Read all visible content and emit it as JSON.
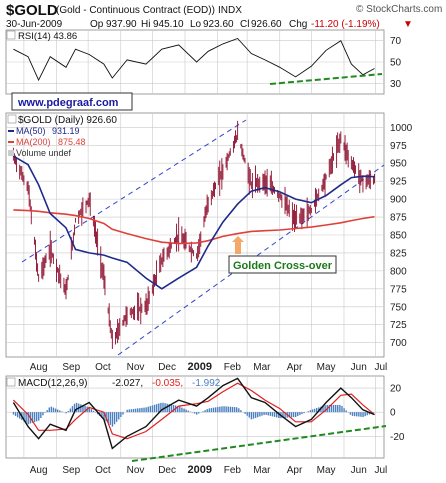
{
  "header": {
    "symbol": "$GOLD",
    "name": "(Gold - Continuous Contract (EOD))",
    "exchange": "INDX",
    "brand": "© StockCharts.com",
    "date": "30-Jun-2009",
    "op_label": "Op",
    "op": "937.90",
    "hi_label": "Hi",
    "hi": "945.10",
    "lo_label": "Lo",
    "lo": "923.60",
    "cl_label": "Cl",
    "cl": "926.60",
    "chg_label": "Chg",
    "chg": "-11.20 (-1.19%)",
    "chg_arrow": "▼"
  },
  "rsi_panel": {
    "legend": "RSI(14) 43.86"
  },
  "price_panel": {
    "url_label": "www.pdegraaf.com",
    "legend_main": "$GOLD (Daily) 926.60",
    "legend_ma50_name": "MA(50)",
    "legend_ma50_value": "931.19",
    "legend_ma200_name": "MA(200)",
    "legend_ma200_value": "875.48",
    "legend_volume": "Volume undef",
    "annotation": "Golden Cross-over"
  },
  "macd_panel": {
    "legend_name": "MACD(12,26,9)",
    "legend_v1": "-2.027,",
    "legend_v2": "-0.035,",
    "legend_v3": "-1.992"
  },
  "x_axis_labels": [
    "Aug",
    "Sep",
    "Oct",
    "Nov",
    "Dec",
    "2009",
    "Feb",
    "Mar",
    "Apr",
    "May",
    "Jun",
    "Jul"
  ],
  "colors": {
    "price_bars": "#8b0a2a",
    "ma50": "#1f2a8a",
    "ma200": "#e0403a",
    "channel": "#3344cc",
    "rsi_trend": "#1f8a1f",
    "macd_line": "#111111",
    "macd_signal": "#e02020",
    "macd_hist": "#4a7fc0",
    "macd_trend": "#1f8a1f",
    "annotation_text": "#1a7a1a",
    "annotation_arrow": "#f3a96a",
    "url_text": "#1a1aa0",
    "chg_text": "#cc0000"
  },
  "chart_data": [
    {
      "type": "line",
      "title": "RSI(14)",
      "y_ticks": [
        70,
        50,
        30
      ],
      "y_range": [
        20,
        80
      ],
      "x": [
        "2008-07-22",
        "2008-08-05",
        "2008-08-15",
        "2008-08-26",
        "2008-09-10",
        "2008-09-19",
        "2008-10-02",
        "2008-10-16",
        "2008-10-24",
        "2008-11-07",
        "2008-11-25",
        "2008-12-10",
        "2008-12-26",
        "2009-01-12",
        "2009-01-23",
        "2009-02-06",
        "2009-02-20",
        "2009-03-05",
        "2009-03-18",
        "2009-04-01",
        "2009-04-16",
        "2009-05-01",
        "2009-05-15",
        "2009-05-29",
        "2009-06-08",
        "2009-06-19",
        "2009-06-30"
      ],
      "series": [
        {
          "values": [
            62,
            55,
            33,
            55,
            45,
            62,
            57,
            48,
            35,
            52,
            48,
            62,
            66,
            50,
            60,
            67,
            72,
            58,
            52,
            45,
            36,
            46,
            61,
            70,
            48,
            38,
            43.86
          ]
        }
      ]
    },
    {
      "type": "line",
      "title": "$GOLD (Daily) 926.60",
      "y_ticks": [
        1000,
        975,
        950,
        925,
        900,
        875,
        850,
        825,
        800,
        775,
        750,
        725,
        700
      ],
      "y_range": [
        680,
        1020
      ],
      "x": [
        "2008-07-22",
        "2008-08-05",
        "2008-08-15",
        "2008-08-26",
        "2008-09-10",
        "2008-09-19",
        "2008-10-02",
        "2008-10-16",
        "2008-10-24",
        "2008-11-07",
        "2008-11-25",
        "2008-12-10",
        "2008-12-26",
        "2009-01-12",
        "2009-01-23",
        "2009-02-06",
        "2009-02-20",
        "2009-03-05",
        "2009-03-18",
        "2009-04-01",
        "2009-04-16",
        "2009-05-01",
        "2009-05-15",
        "2009-05-29",
        "2009-06-08",
        "2009-06-19",
        "2009-06-30"
      ],
      "series": [
        {
          "name": "$GOLD",
          "values": [
            960,
            915,
            790,
            830,
            770,
            870,
            900,
            790,
            700,
            740,
            750,
            815,
            850,
            820,
            895,
            940,
            990,
            920,
            925,
            905,
            870,
            885,
            930,
            985,
            950,
            925,
            926.6
          ]
        },
        {
          "name": "MA(50)",
          "values": [
            960,
            948,
            920,
            880,
            860,
            830,
            825,
            822,
            818,
            812,
            790,
            775,
            790,
            805,
            835,
            868,
            893,
            911,
            916,
            910,
            900,
            895,
            905,
            920,
            930,
            932,
            931.19
          ]
        },
        {
          "name": "MA(200)",
          "values": [
            885,
            884,
            883,
            881,
            879,
            877,
            873,
            866,
            858,
            852,
            845,
            840,
            838,
            839,
            842,
            848,
            852,
            855,
            856,
            857,
            859,
            861,
            864,
            867,
            870,
            873,
            875.48
          ]
        }
      ]
    },
    {
      "type": "line",
      "title": "MACD(12,26,9)",
      "y_ticks": [
        20,
        0,
        -20
      ],
      "y_range": [
        -38,
        30
      ],
      "x": [
        "2008-07-22",
        "2008-08-05",
        "2008-08-15",
        "2008-08-26",
        "2008-09-10",
        "2008-09-19",
        "2008-10-02",
        "2008-10-16",
        "2008-10-24",
        "2008-11-07",
        "2008-11-25",
        "2008-12-10",
        "2008-12-26",
        "2009-01-12",
        "2009-01-23",
        "2009-02-06",
        "2009-02-20",
        "2009-03-05",
        "2009-03-18",
        "2009-04-01",
        "2009-04-16",
        "2009-05-01",
        "2009-05-15",
        "2009-05-29",
        "2009-06-08",
        "2009-06-19",
        "2009-06-30"
      ],
      "series": [
        {
          "name": "MACD",
          "values": [
            8,
            -12,
            -22,
            -10,
            -15,
            2,
            8,
            -6,
            -30,
            -20,
            -12,
            2,
            10,
            5,
            12,
            22,
            28,
            12,
            8,
            -2,
            -12,
            -6,
            8,
            20,
            12,
            2,
            -2.027
          ]
        },
        {
          "name": "Signal",
          "values": [
            10,
            -2,
            -15,
            -15,
            -14,
            -6,
            4,
            0,
            -18,
            -22,
            -16,
            -6,
            5,
            7,
            9,
            17,
            24,
            18,
            10,
            3,
            -8,
            -8,
            2,
            14,
            15,
            6,
            -1.992
          ]
        },
        {
          "name": "Histogram",
          "values": [
            -2,
            -10,
            -7,
            5,
            -1,
            8,
            4,
            -6,
            -12,
            2,
            4,
            8,
            5,
            -2,
            3,
            5,
            4,
            -6,
            -2,
            -5,
            -4,
            2,
            6,
            6,
            -3,
            -4,
            -0.035
          ]
        }
      ]
    }
  ]
}
